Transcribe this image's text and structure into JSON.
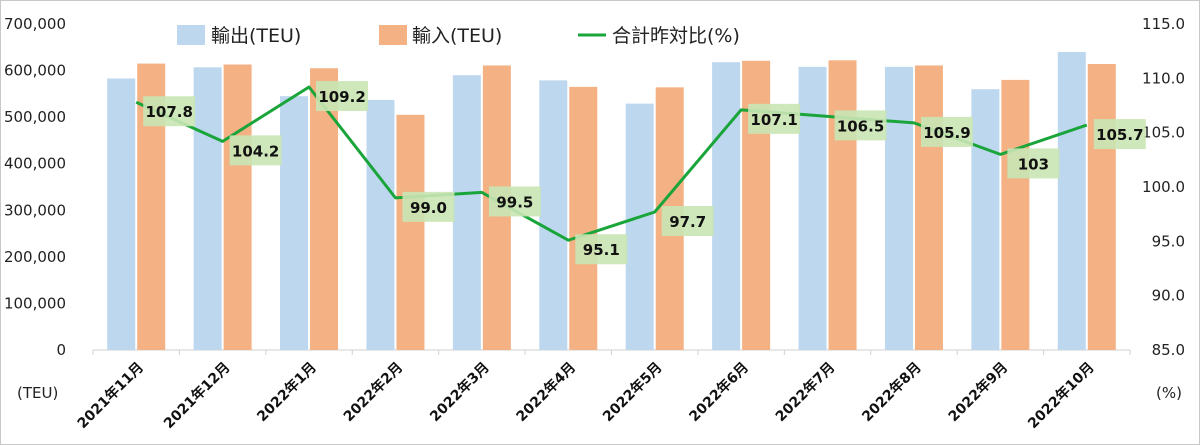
{
  "chart_data": {
    "type": "bar",
    "categories": [
      "2021年11月",
      "2021年12月",
      "2022年1月",
      "2022年2月",
      "2022年3月",
      "2022年4月",
      "2022年5月",
      "2022年6月",
      "2022年7月",
      "2022年8月",
      "2022年9月",
      "2022年10月"
    ],
    "series": [
      {
        "name": "輸出(TEU)",
        "type": "bar",
        "axis": "left",
        "color": "#bdd7ee",
        "values": [
          583000,
          607000,
          545000,
          537000,
          590000,
          579000,
          529000,
          618000,
          608000,
          608000,
          560000,
          640000
        ]
      },
      {
        "name": "輸入(TEU)",
        "type": "bar",
        "axis": "left",
        "color": "#f4b183",
        "values": [
          615000,
          613000,
          605000,
          505000,
          611000,
          565000,
          564000,
          621000,
          622000,
          611000,
          580000,
          614000
        ]
      },
      {
        "name": "合計昨対比(%)",
        "type": "line",
        "axis": "right",
        "color": "#1aa53a",
        "values": [
          107.8,
          104.2,
          109.2,
          99.0,
          99.5,
          95.1,
          97.7,
          107.1,
          106.5,
          105.9,
          103,
          105.7
        ],
        "labels": [
          "107.8",
          "104.2",
          "109.2",
          "99.0",
          "99.5",
          "95.1",
          "97.7",
          "107.1",
          "106.5",
          "105.9",
          "103",
          "105.7"
        ]
      }
    ],
    "y_left": {
      "min": 0,
      "max": 700000,
      "ticks": [
        "0",
        "100,000",
        "200,000",
        "300,000",
        "400,000",
        "500,000",
        "600,000",
        "700,000"
      ],
      "unit": "(TEU)"
    },
    "y_right": {
      "min": 85,
      "max": 115,
      "ticks": [
        "85.0",
        "90.0",
        "95.0",
        "100.0",
        "105.0",
        "110.0",
        "115.0"
      ],
      "unit": "(%)"
    },
    "label_bg": "#c9e5b4",
    "legend_position": "top",
    "grid": false
  }
}
